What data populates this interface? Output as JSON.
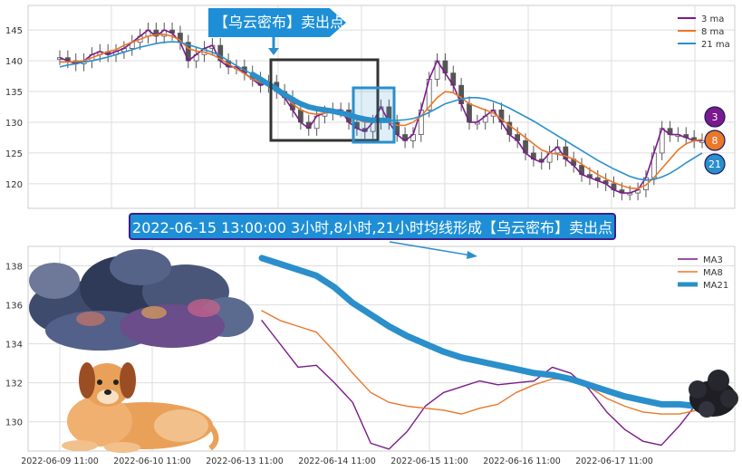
{
  "banner_top": "【乌云密布】卖出点",
  "banner_mid": "2022-06-15 13:00:00 3小时,8小时,21小时均线形成【乌云密布】卖出点",
  "badges": [
    "3",
    "8",
    "21"
  ],
  "colors": {
    "ma3": "#7b1a8c",
    "ma8": "#e8782a",
    "ma21": "#2a8fcb",
    "candle": "#555555",
    "box_dark": "#333333",
    "box_blue": "#2a8fcb",
    "banner": "#1e8fd6",
    "grid": "#dddddd"
  },
  "chart_data": [
    {
      "type": "line",
      "title": "",
      "ylim": [
        116,
        149
      ],
      "yticks": [
        120,
        125,
        130,
        135,
        140,
        145
      ],
      "legend": [
        "3 ma",
        "8 ma",
        "21 ma"
      ],
      "legend_position": "top-right",
      "grid": true,
      "series": [
        {
          "name": "3 ma",
          "values": [
            140.5,
            140,
            139.5,
            140,
            141,
            141.5,
            141,
            141.5,
            142,
            143,
            144,
            145,
            144,
            145,
            144.5,
            143,
            140,
            141,
            142,
            142.5,
            140,
            139,
            139,
            138,
            137,
            136,
            136.5,
            135,
            134,
            132,
            130,
            129,
            131,
            131.5,
            132,
            132,
            130,
            129,
            128.5,
            130,
            132.5,
            130,
            128,
            127,
            128,
            132,
            137,
            140,
            138,
            136,
            133,
            130,
            130,
            131,
            132,
            130,
            128,
            127,
            125,
            124,
            123.5,
            125,
            126,
            124,
            123,
            121.5,
            121,
            120.5,
            120,
            119,
            118.5,
            118.5,
            119,
            121,
            125,
            129,
            128,
            128,
            127.5,
            127,
            127
          ]
        },
        {
          "name": "8 ma",
          "values": [
            139.8,
            139.8,
            139.9,
            140,
            140.5,
            141,
            141.5,
            141.8,
            142.5,
            143,
            143.5,
            144,
            144.2,
            144.3,
            144,
            143.3,
            142,
            141.6,
            141.4,
            141,
            140.3,
            139.5,
            138.7,
            137.9,
            137,
            136.5,
            136,
            135.2,
            134.2,
            133,
            132,
            131.5,
            131.3,
            131.5,
            131.6,
            131.4,
            131,
            130.5,
            130,
            130,
            130.3,
            130,
            129.5,
            129.5,
            130,
            131,
            132.5,
            134,
            135,
            134.8,
            134,
            133,
            132.5,
            132,
            131.5,
            130.5,
            129.5,
            128.5,
            127.5,
            126.5,
            125.5,
            125,
            124.8,
            124.5,
            124,
            123.2,
            122.3,
            121.5,
            120.8,
            120.2,
            119.7,
            119.3,
            119.2,
            119.8,
            121,
            122.5,
            124,
            125.5,
            126.5,
            127,
            127.2
          ]
        },
        {
          "name": "21 ma",
          "values": [
            139,
            139.3,
            139.5,
            139.8,
            140,
            140.3,
            140.6,
            141,
            141.4,
            141.8,
            142.2,
            142.5,
            142.8,
            143,
            143.1,
            143,
            142.6,
            142.2,
            141.8,
            141.4,
            140.8,
            140,
            139.2,
            138.5,
            137.8,
            137,
            136.2,
            135.4,
            134.5,
            133.7,
            133,
            132.5,
            132.2,
            132,
            131.8,
            131.5,
            131.2,
            130.8,
            130.5,
            130.3,
            130.3,
            130.3,
            130.3,
            130.4,
            130.6,
            131,
            131.6,
            132.3,
            133,
            133.4,
            133.8,
            134,
            134,
            133.8,
            133.4,
            132.9,
            132.3,
            131.6,
            130.9,
            130.2,
            129.4,
            128.6,
            127.8,
            127,
            126.2,
            125.4,
            124.6,
            123.8,
            123.1,
            122.4,
            121.8,
            121.2,
            120.8,
            120.6,
            120.7,
            121.1,
            121.7,
            122.5,
            123.4,
            124.2,
            125
          ]
        }
      ]
    },
    {
      "type": "line",
      "title": "",
      "ylim": [
        128.5,
        139
      ],
      "yticks": [
        130,
        132,
        134,
        136,
        138
      ],
      "xticks": [
        "2022-06-09 11:00",
        "2022-06-10 11:00",
        "2022-06-13 11:00",
        "2022-06-14 11:00",
        "2022-06-15 11:00",
        "2022-06-16 11:00",
        "2022-06-17 11:00"
      ],
      "legend": [
        "MA3",
        "MA8",
        "MA21"
      ],
      "legend_position": "top-right",
      "grid": true,
      "series": [
        {
          "name": "MA3",
          "x": [
            13,
            14,
            15,
            16,
            17,
            18,
            19,
            20,
            21,
            22,
            23,
            24,
            25,
            26,
            27,
            28,
            29,
            30,
            31,
            32,
            33,
            34,
            35,
            36,
            37
          ],
          "values": [
            135.2,
            134,
            132.8,
            132.9,
            132,
            131,
            128.9,
            128.6,
            129.5,
            130.8,
            131.5,
            131.8,
            132.1,
            131.9,
            132,
            132.1,
            132.8,
            132.5,
            131.7,
            130.5,
            129.6,
            129,
            128.8,
            129.8,
            131
          ]
        },
        {
          "name": "MA8",
          "x": [
            13,
            14,
            15,
            16,
            17,
            18,
            19,
            20,
            21,
            22,
            23,
            24,
            25,
            26,
            27,
            28,
            29,
            30,
            31,
            32,
            33,
            34,
            35,
            36,
            37
          ],
          "values": [
            135.7,
            135.2,
            134.9,
            134.6,
            133.6,
            132.5,
            131.5,
            131,
            130.8,
            130.7,
            130.6,
            130.4,
            130.7,
            130.9,
            131.5,
            131.9,
            132.2,
            132.2,
            131.8,
            131.2,
            130.8,
            130.5,
            130.4,
            130.4,
            130.6
          ]
        },
        {
          "name": "MA21",
          "x": [
            13,
            14,
            15,
            16,
            17,
            18,
            19,
            20,
            21,
            22,
            23,
            24,
            25,
            26,
            27,
            28,
            29,
            30,
            31,
            32,
            33,
            34,
            35,
            36,
            37
          ],
          "values": [
            138.4,
            138.1,
            137.8,
            137.5,
            136.9,
            136.1,
            135.5,
            134.9,
            134.4,
            134,
            133.6,
            133.3,
            133.1,
            132.9,
            132.7,
            132.5,
            132.4,
            132.2,
            131.9,
            131.6,
            131.3,
            131.1,
            130.9,
            130.9,
            130.8
          ]
        }
      ]
    }
  ]
}
